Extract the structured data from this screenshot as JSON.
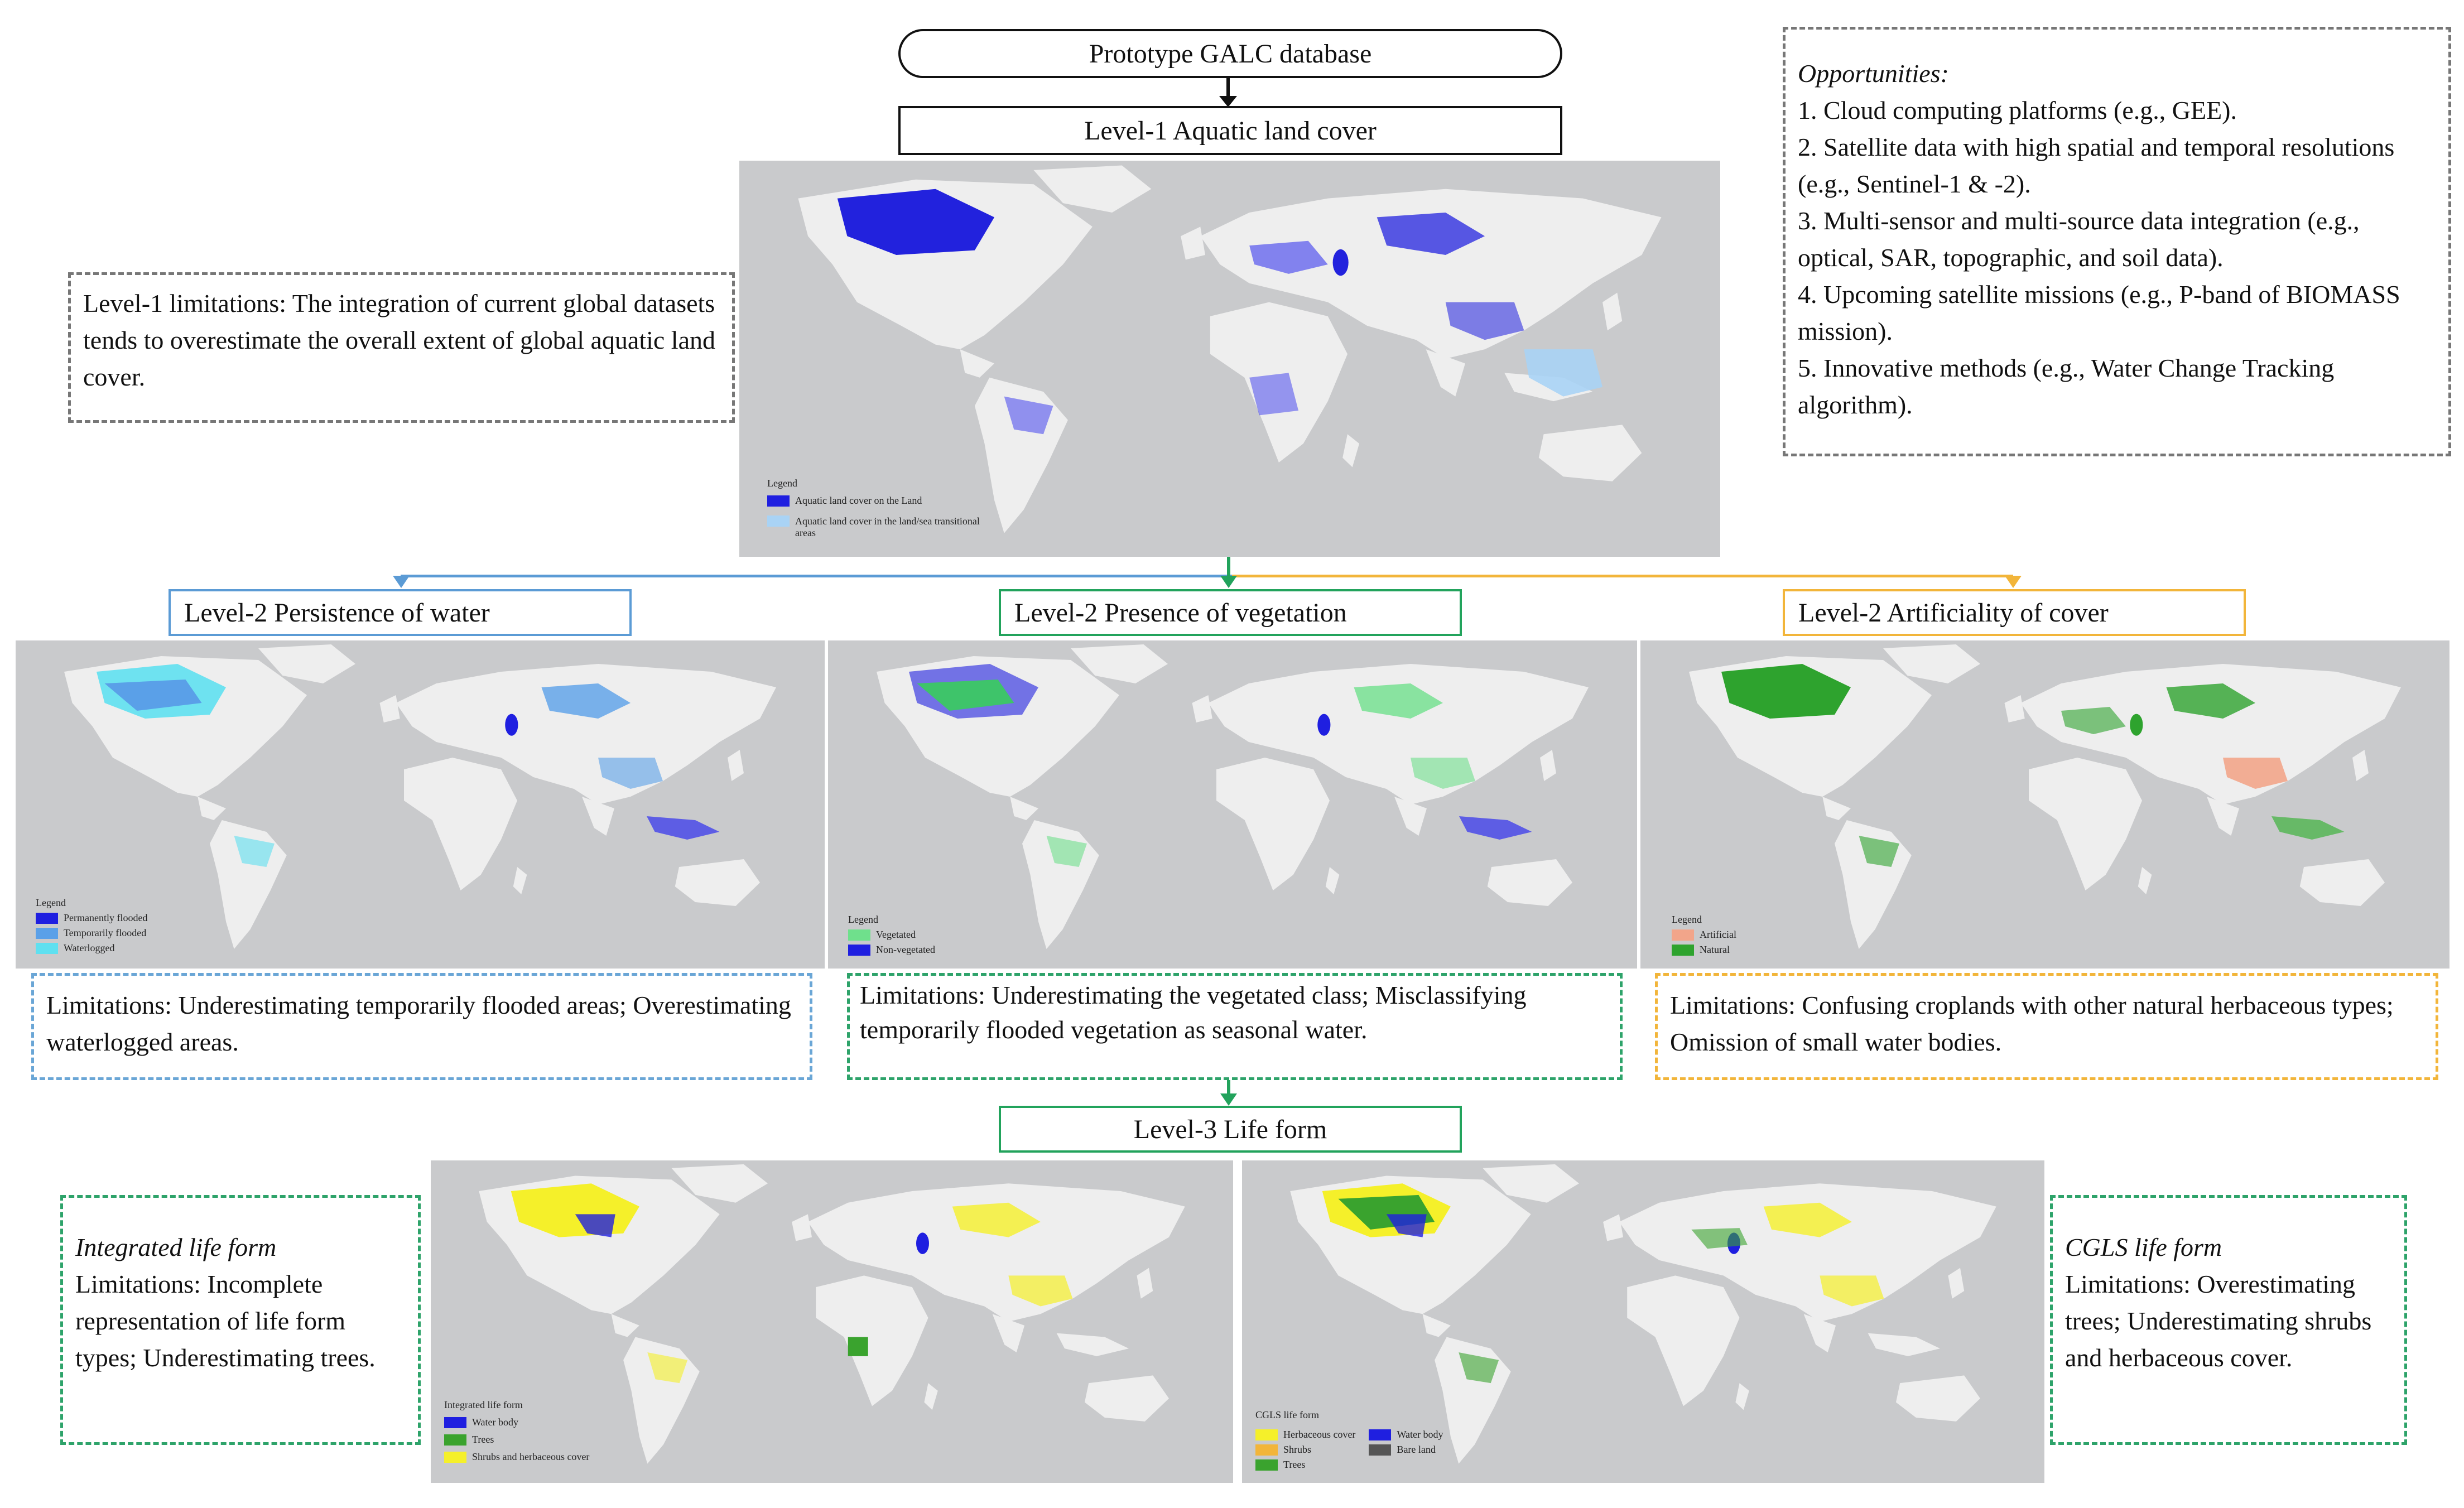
{
  "header": {
    "database": "Prototype GALC database",
    "level1": "Level-1 Aquatic land cover"
  },
  "level1_map": {
    "legend_title": "Legend",
    "legend_items": [
      {
        "label": "Aquatic land cover on the Land",
        "color": "#1f1fe0"
      },
      {
        "label": "Aquatic land cover in the land/sea transitional areas",
        "color": "#a9d3f5"
      }
    ]
  },
  "level1_limitations": "Level-1 limitations: The integration of current global datasets tends to overestimate the overall extent of global aquatic land cover.",
  "opportunities": {
    "heading": "Opportunities:",
    "items": [
      "1. Cloud computing platforms (e.g., GEE).",
      "2. Satellite data with high spatial and temporal resolutions (e.g., Sentinel-1 & -2).",
      "3. Multi-sensor and multi-source data integration (e.g., optical, SAR, topographic, and soil data).",
      "4. Upcoming satellite missions (e.g., P-band of BIOMASS mission).",
      "5. Innovative methods (e.g., Water Change Tracking algorithm)."
    ]
  },
  "level2": [
    {
      "title": "Level-2 Persistence of water",
      "color": "#5b9bd5",
      "legend_title": "Legend",
      "legend_items": [
        {
          "label": "Permanently flooded",
          "color": "#1f1fe0"
        },
        {
          "label": "Temporarily flooded",
          "color": "#5aa0e8"
        },
        {
          "label": "Waterlogged",
          "color": "#5fe0f0"
        }
      ],
      "limitations": "Limitations: Underestimating temporarily flooded areas; Overestimating waterlogged areas."
    },
    {
      "title": "Level-2 Presence of vegetation",
      "color": "#22a35c",
      "legend_title": "Legend",
      "legend_items": [
        {
          "label": "Vegetated",
          "color": "#6fe08c"
        },
        {
          "label": "Non-vegetated",
          "color": "#1f1fe0"
        }
      ],
      "limitations": "Limitations: Underestimating the vegetated class; Misclassifying temporarily flooded vegetation as seasonal water."
    },
    {
      "title": "Level-2 Artificiality of cover",
      "color": "#f2b53a",
      "legend_title": "Legend",
      "legend_items": [
        {
          "label": "Artificial",
          "color": "#f2a58a"
        },
        {
          "label": "Natural",
          "color": "#2ea32e"
        }
      ],
      "limitations": "Limitations: Confusing croplands with other natural herbaceous types; Omission of small water bodies."
    }
  ],
  "level3": {
    "title": "Level-3 Life form",
    "integrated": {
      "heading": "Integrated life form",
      "text": "Limitations: Incomplete representation of life form types; Underestimating trees.",
      "legend_title": "Integrated life form",
      "legend_items": [
        {
          "label": "Water body",
          "color": "#1f1fe0"
        },
        {
          "label": "Trees",
          "color": "#3aa32e"
        },
        {
          "label": "Shrubs and herbaceous cover",
          "color": "#f5f02a"
        }
      ]
    },
    "cgls": {
      "heading": "CGLS life form",
      "text": "Limitations: Overestimating trees; Underestimating shrubs and herbaceous cover.",
      "legend_title": "CGLS life form",
      "legend_items": [
        {
          "label": "Herbaceous cover",
          "color": "#f5f02a"
        },
        {
          "label": "Shrubs",
          "color": "#f2b53a"
        },
        {
          "label": "Trees",
          "color": "#3aa32e"
        },
        {
          "label": "Water body",
          "color": "#1f1fe0"
        },
        {
          "label": "Bare land",
          "color": "#555555"
        }
      ]
    }
  }
}
